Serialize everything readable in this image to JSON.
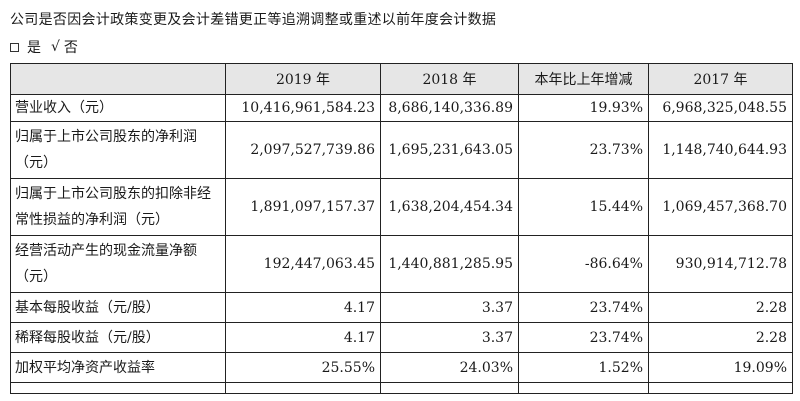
{
  "header": {
    "title": "公司是否因会计政策变更及会计差错更正等追溯调整或重述以前年度会计数据",
    "choice_yes": "是",
    "choice_check": "√",
    "choice_no": "否"
  },
  "table": {
    "columns": [
      "",
      "2019 年",
      "2018 年",
      "本年比上年增减",
      "2017 年"
    ],
    "rows": [
      {
        "label": "营业收入（元）",
        "label_line2": "",
        "values": [
          "10,416,961,584.23",
          "8,686,140,336.89",
          "19.93%",
          "6,968,325,048.55"
        ]
      },
      {
        "label": "归属于上市公司股东的净利润",
        "label_line2": "（元）",
        "values": [
          "2,097,527,739.86",
          "1,695,231,643.05",
          "23.73%",
          "1,148,740,644.93"
        ]
      },
      {
        "label": "归属于上市公司股东的扣除非经",
        "label_line2": "常性损益的净利润（元）",
        "values": [
          "1,891,097,157.37",
          "1,638,204,454.34",
          "15.44%",
          "1,069,457,368.70"
        ]
      },
      {
        "label": "经营活动产生的现金流量净额",
        "label_line2": "（元）",
        "values": [
          "192,447,063.45",
          "1,440,881,285.95",
          "-86.64%",
          "930,914,712.78"
        ]
      },
      {
        "label": "基本每股收益（元/股）",
        "label_line2": "",
        "values": [
          "4.17",
          "3.37",
          "23.74%",
          "2.28"
        ]
      },
      {
        "label": "稀释每股收益（元/股）",
        "label_line2": "",
        "values": [
          "4.17",
          "3.37",
          "23.74%",
          "2.28"
        ]
      },
      {
        "label": "加权平均净资产收益率",
        "label_line2": "",
        "values": [
          "25.55%",
          "24.03%",
          "1.52%",
          "19.09%"
        ]
      }
    ]
  }
}
